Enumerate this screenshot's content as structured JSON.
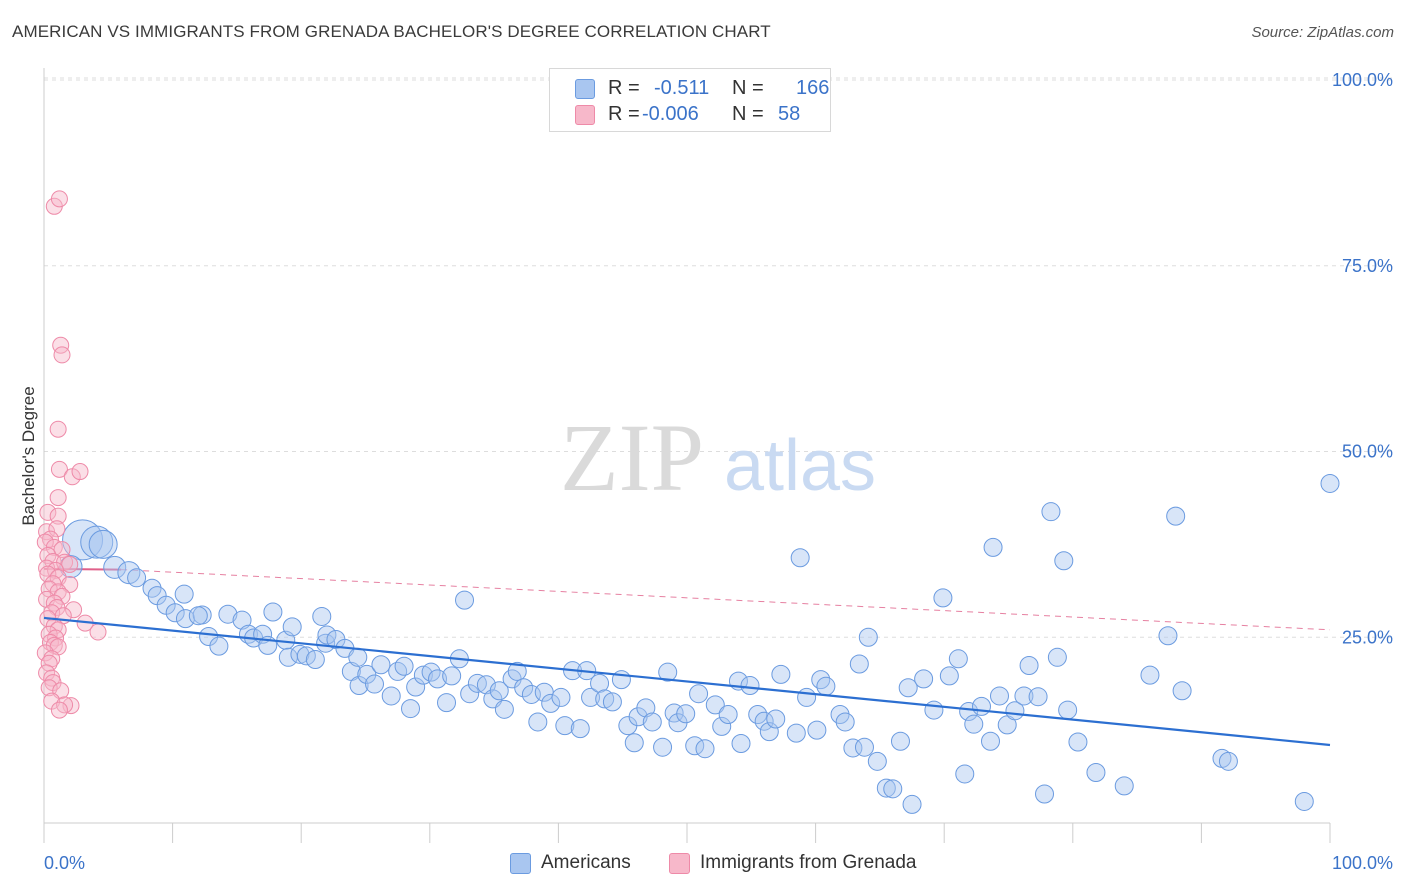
{
  "title": "AMERICAN VS IMMIGRANTS FROM GRENADA BACHELOR'S DEGREE CORRELATION CHART",
  "source": "Source: ZipAtlas.com",
  "watermark": {
    "zip": "ZIP",
    "atlas": "atlas"
  },
  "legend": {
    "rows": [
      {
        "r_label": "R =",
        "r_value": "-0.511",
        "n_label": "N =",
        "n_value": "166",
        "color": "#a9c6f0"
      },
      {
        "r_label": "R =",
        "r_value": "-0.006",
        "n_label": "N =",
        "n_value": "58",
        "color": "#f7b8ca"
      }
    ]
  },
  "bottom_legend": {
    "americans": "Americans",
    "grenada": "Immigrants from Grenada"
  },
  "colors": {
    "blue_fill": "#a9c6f0",
    "blue_stroke": "#6b9be0",
    "blue_line": "#2c6fd1",
    "pink_fill": "#f7b8ca",
    "pink_stroke": "#ee8aa8",
    "pink_line": "#e0608a",
    "axis_text": "#3b73c9",
    "grid": "#dddddd"
  },
  "chart_data": {
    "type": "scatter",
    "title": "AMERICAN VS IMMIGRANTS FROM GRENADA BACHELOR'S DEGREE CORRELATION CHART",
    "xlabel": "",
    "ylabel": "Bachelor's Degree",
    "xlim": [
      0,
      100
    ],
    "ylim": [
      0,
      100
    ],
    "x_tick_labels": [
      "0.0%",
      "100.0%"
    ],
    "y_tick_labels": [
      "25.0%",
      "50.0%",
      "75.0%",
      "100.0%"
    ],
    "y_ticks": [
      25,
      50,
      75,
      100
    ],
    "grid": "horizontal dashed",
    "legend_position": "top-center",
    "series": [
      {
        "name": "Americans",
        "trend": {
          "x": [
            0,
            100
          ],
          "y": [
            27.6,
            10.5
          ]
        },
        "points": [
          [
            3.0,
            38.1,
            7
          ],
          [
            4.1,
            37.8,
            5
          ],
          [
            4.6,
            37.5,
            4
          ],
          [
            2.1,
            34.5,
            3
          ],
          [
            5.5,
            34.4,
            3
          ],
          [
            6.6,
            33.7,
            3
          ],
          [
            7.2,
            33.0,
            2
          ],
          [
            8.4,
            31.6,
            2
          ],
          [
            8.8,
            30.6,
            2
          ],
          [
            9.5,
            29.3,
            2
          ],
          [
            10.2,
            28.3,
            2
          ],
          [
            11.0,
            27.5,
            2
          ],
          [
            10.9,
            30.8,
            2
          ],
          [
            12.3,
            28.0,
            2
          ],
          [
            12.8,
            25.1,
            2
          ],
          [
            12.0,
            27.9,
            2
          ],
          [
            13.6,
            23.8,
            2
          ],
          [
            14.3,
            28.1,
            2
          ],
          [
            15.4,
            27.3,
            2
          ],
          [
            15.9,
            25.4,
            2
          ],
          [
            16.3,
            24.9,
            2
          ],
          [
            17.0,
            25.4,
            2
          ],
          [
            17.4,
            23.9,
            2
          ],
          [
            17.8,
            28.4,
            2
          ],
          [
            18.8,
            24.6,
            2
          ],
          [
            19.0,
            22.3,
            2
          ],
          [
            19.3,
            26.4,
            2
          ],
          [
            19.9,
            22.7,
            2
          ],
          [
            20.4,
            22.5,
            2
          ],
          [
            21.1,
            22.0,
            2
          ],
          [
            21.6,
            27.8,
            2
          ],
          [
            21.9,
            24.2,
            2
          ],
          [
            22.0,
            25.3,
            2
          ],
          [
            22.7,
            24.7,
            2
          ],
          [
            23.4,
            23.5,
            2
          ],
          [
            23.9,
            20.4,
            2
          ],
          [
            24.4,
            22.3,
            2
          ],
          [
            24.5,
            18.5,
            2
          ],
          [
            25.1,
            20.0,
            2
          ],
          [
            25.7,
            18.7,
            2
          ],
          [
            26.2,
            21.3,
            2
          ],
          [
            27.0,
            17.1,
            2
          ],
          [
            27.5,
            20.4,
            2
          ],
          [
            28.0,
            21.1,
            2
          ],
          [
            28.5,
            15.4,
            2
          ],
          [
            28.9,
            18.3,
            2
          ],
          [
            29.5,
            19.9,
            2
          ],
          [
            30.1,
            20.3,
            2
          ],
          [
            30.6,
            19.4,
            2
          ],
          [
            31.3,
            16.2,
            2
          ],
          [
            31.7,
            19.8,
            2
          ],
          [
            32.3,
            22.1,
            2
          ],
          [
            32.7,
            30.0,
            2
          ],
          [
            33.1,
            17.4,
            2
          ],
          [
            33.7,
            18.8,
            2
          ],
          [
            34.4,
            18.6,
            2
          ],
          [
            34.9,
            16.7,
            2
          ],
          [
            35.4,
            17.8,
            2
          ],
          [
            35.8,
            15.3,
            2
          ],
          [
            36.4,
            19.4,
            2
          ],
          [
            36.8,
            20.4,
            2
          ],
          [
            37.3,
            18.2,
            2
          ],
          [
            37.9,
            17.3,
            2
          ],
          [
            38.4,
            13.6,
            2
          ],
          [
            38.9,
            17.6,
            2
          ],
          [
            39.4,
            16.1,
            2
          ],
          [
            40.2,
            16.9,
            2
          ],
          [
            40.5,
            13.1,
            2
          ],
          [
            41.1,
            20.5,
            2
          ],
          [
            41.7,
            12.7,
            2
          ],
          [
            42.2,
            20.5,
            2
          ],
          [
            42.5,
            16.9,
            2
          ],
          [
            43.2,
            18.8,
            2
          ],
          [
            43.6,
            16.7,
            2
          ],
          [
            44.2,
            16.3,
            2
          ],
          [
            44.9,
            19.3,
            2
          ],
          [
            45.4,
            13.1,
            2
          ],
          [
            45.9,
            10.8,
            2
          ],
          [
            46.2,
            14.3,
            2
          ],
          [
            46.8,
            15.5,
            2
          ],
          [
            47.3,
            13.6,
            2
          ],
          [
            48.1,
            10.2,
            2
          ],
          [
            48.5,
            20.3,
            2
          ],
          [
            49.0,
            14.8,
            2
          ],
          [
            49.3,
            13.5,
            2
          ],
          [
            49.9,
            14.7,
            2
          ],
          [
            50.6,
            10.4,
            2
          ],
          [
            50.9,
            17.4,
            2
          ],
          [
            51.4,
            10.0,
            2
          ],
          [
            52.2,
            15.9,
            2
          ],
          [
            52.7,
            13.0,
            2
          ],
          [
            53.2,
            14.6,
            2
          ],
          [
            54.0,
            19.1,
            2
          ],
          [
            54.2,
            10.7,
            2
          ],
          [
            54.9,
            18.5,
            2
          ],
          [
            55.5,
            14.6,
            2
          ],
          [
            56.0,
            13.7,
            2
          ],
          [
            56.4,
            12.3,
            2
          ],
          [
            56.9,
            14.0,
            2
          ],
          [
            57.3,
            20.0,
            2
          ],
          [
            58.5,
            12.1,
            2
          ],
          [
            58.8,
            35.7,
            2
          ],
          [
            59.3,
            16.9,
            2
          ],
          [
            60.1,
            12.5,
            2
          ],
          [
            60.4,
            19.3,
            2
          ],
          [
            60.8,
            18.4,
            2
          ],
          [
            61.9,
            14.6,
            2
          ],
          [
            62.3,
            13.6,
            2
          ],
          [
            62.9,
            10.1,
            2
          ],
          [
            63.4,
            21.4,
            2
          ],
          [
            63.8,
            10.2,
            2
          ],
          [
            64.1,
            25.0,
            2
          ],
          [
            64.8,
            8.3,
            2
          ],
          [
            65.5,
            4.7,
            2
          ],
          [
            66.0,
            4.6,
            2
          ],
          [
            66.6,
            11.0,
            2
          ],
          [
            67.2,
            18.2,
            2
          ],
          [
            67.5,
            2.5,
            2
          ],
          [
            68.4,
            19.4,
            2
          ],
          [
            69.2,
            15.2,
            2
          ],
          [
            69.9,
            30.3,
            2
          ],
          [
            70.4,
            19.8,
            2
          ],
          [
            71.1,
            22.1,
            2
          ],
          [
            71.6,
            6.6,
            2
          ],
          [
            71.9,
            15.0,
            2
          ],
          [
            72.3,
            13.3,
            2
          ],
          [
            72.9,
            15.7,
            2
          ],
          [
            73.6,
            11.0,
            2
          ],
          [
            73.8,
            37.1,
            2
          ],
          [
            74.3,
            17.1,
            2
          ],
          [
            74.9,
            13.2,
            2
          ],
          [
            75.5,
            15.1,
            2
          ],
          [
            76.2,
            17.1,
            2
          ],
          [
            76.6,
            21.2,
            2
          ],
          [
            77.3,
            17.0,
            2
          ],
          [
            77.8,
            3.9,
            2
          ],
          [
            78.3,
            41.9,
            2
          ],
          [
            78.8,
            22.3,
            2
          ],
          [
            79.3,
            35.3,
            2
          ],
          [
            79.6,
            15.2,
            2
          ],
          [
            80.4,
            10.9,
            2
          ],
          [
            81.8,
            6.8,
            2
          ],
          [
            84.0,
            5.0,
            2
          ],
          [
            86.0,
            19.9,
            2
          ],
          [
            87.4,
            25.2,
            2
          ],
          [
            88.0,
            41.3,
            2
          ],
          [
            88.5,
            17.8,
            2
          ],
          [
            91.6,
            8.7,
            2
          ],
          [
            92.1,
            8.3,
            2
          ],
          [
            98.0,
            2.9,
            2
          ],
          [
            100.0,
            45.7,
            2
          ]
        ]
      },
      {
        "name": "Immigrants from Grenada",
        "trend": {
          "x": [
            0,
            6
          ],
          "y": [
            34.2,
            34.1
          ]
        },
        "trend_dashed": {
          "x": [
            6,
            100
          ],
          "y": [
            34.1,
            26.0
          ]
        },
        "points": [
          [
            0.8,
            83.0,
            1
          ],
          [
            1.2,
            84.0,
            1
          ],
          [
            1.3,
            64.3,
            1
          ],
          [
            1.4,
            63.0,
            1
          ],
          [
            1.1,
            53.0,
            1
          ],
          [
            1.2,
            47.6,
            1
          ],
          [
            2.2,
            46.6,
            1
          ],
          [
            2.8,
            47.3,
            1
          ],
          [
            1.1,
            43.8,
            1
          ],
          [
            0.3,
            41.8,
            1
          ],
          [
            1.1,
            41.3,
            1
          ],
          [
            0.2,
            39.2,
            1
          ],
          [
            1.0,
            39.6,
            1
          ],
          [
            0.5,
            38.2,
            1
          ],
          [
            0.1,
            37.8,
            1
          ],
          [
            0.8,
            37.1,
            1
          ],
          [
            1.4,
            36.8,
            1
          ],
          [
            0.3,
            36.0,
            1
          ],
          [
            0.7,
            35.2,
            1
          ],
          [
            1.6,
            35.1,
            1
          ],
          [
            2.0,
            34.8,
            1
          ],
          [
            0.2,
            34.3,
            1
          ],
          [
            0.9,
            34.0,
            1
          ],
          [
            0.3,
            33.5,
            1
          ],
          [
            1.1,
            33.0,
            1
          ],
          [
            0.7,
            32.2,
            1
          ],
          [
            2.0,
            32.1,
            1
          ],
          [
            0.4,
            31.5,
            1
          ],
          [
            1.1,
            31.1,
            1
          ],
          [
            1.4,
            30.5,
            1
          ],
          [
            0.2,
            30.1,
            1
          ],
          [
            0.8,
            29.6,
            1
          ],
          [
            1.0,
            29.0,
            1
          ],
          [
            2.3,
            28.7,
            1
          ],
          [
            0.6,
            28.3,
            1
          ],
          [
            1.5,
            27.9,
            1
          ],
          [
            0.3,
            27.5,
            1
          ],
          [
            3.2,
            26.9,
            1
          ],
          [
            0.8,
            26.5,
            1
          ],
          [
            1.1,
            26.0,
            1
          ],
          [
            4.2,
            25.7,
            1
          ],
          [
            0.4,
            25.4,
            1
          ],
          [
            0.9,
            24.9,
            1
          ],
          [
            0.5,
            24.3,
            1
          ],
          [
            0.8,
            23.9,
            1
          ],
          [
            1.1,
            23.7,
            1
          ],
          [
            0.1,
            22.9,
            1
          ],
          [
            0.6,
            22.1,
            1
          ],
          [
            0.4,
            21.5,
            1
          ],
          [
            0.2,
            20.2,
            1
          ],
          [
            0.6,
            19.5,
            1
          ],
          [
            0.7,
            18.9,
            1
          ],
          [
            0.4,
            18.2,
            1
          ],
          [
            1.3,
            17.8,
            1
          ],
          [
            0.6,
            16.4,
            1
          ],
          [
            2.1,
            15.8,
            1
          ],
          [
            1.6,
            15.9,
            1
          ],
          [
            1.2,
            15.2,
            1
          ]
        ]
      }
    ]
  }
}
